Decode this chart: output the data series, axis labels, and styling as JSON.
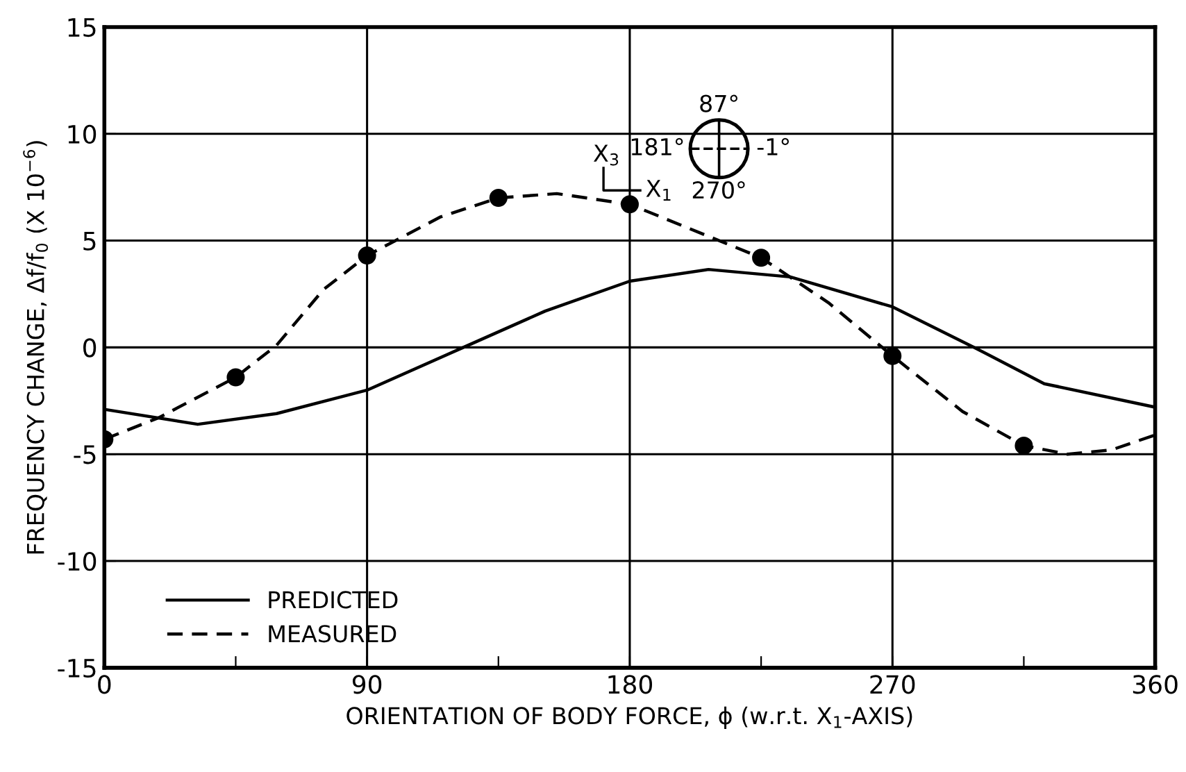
{
  "chart_data": {
    "type": "line",
    "xlabel": "ORIENTATION OF BODY FORCE, ϕ (w.r.t. X$_{1}$-AXIS)",
    "ylabel": "FREQUENCY CHANGE, Δf/f$_{0}$ (X 10$^{−6}$)",
    "xlim": [
      0,
      360
    ],
    "ylim": [
      -15,
      15
    ],
    "xticks": [
      0,
      {
        "value": 45,
        "label": null
      },
      90,
      {
        "value": 135,
        "label": null
      },
      180,
      {
        "value": 225,
        "label": null
      },
      270,
      {
        "value": 315,
        "label": null
      },
      360
    ],
    "yticks": [
      -15,
      -10,
      -5,
      0,
      5,
      10,
      15
    ],
    "grid": true,
    "legend": "bottom left",
    "series": [
      {
        "name": "PREDICTED",
        "color": "#000000",
        "line_style": "solid",
        "marker": "none",
        "x": [
          0,
          32,
          59,
          90,
          123,
          151,
          180,
          207,
          235,
          270,
          298,
          322,
          360
        ],
        "values": [
          -2.9,
          -3.6,
          -3.1,
          -2.0,
          0,
          1.7,
          3.1,
          3.65,
          3.3,
          1.9,
          0,
          -1.7,
          -2.8
        ]
      },
      {
        "name": "MEASURED",
        "color": "#000000",
        "line_style": "dashed",
        "marker": "none",
        "x": [
          0,
          18.5,
          45,
          59,
          75,
          90,
          115,
          135,
          155,
          180,
          225,
          248,
          270,
          294,
          315,
          330,
          345,
          360
        ],
        "values": [
          -4.3,
          -3.3,
          -1.4,
          0.1,
          2.7,
          4.3,
          6.1,
          7.0,
          7.2,
          6.7,
          4.2,
          2.1,
          -0.4,
          -3.0,
          -4.6,
          -5.0,
          -4.8,
          -4.1
        ]
      },
      {
        "type": "scatter",
        "color": "#000000",
        "marker": "circle",
        "x": [
          0,
          45,
          90,
          135,
          180,
          225,
          270,
          315
        ],
        "values": [
          -4.3,
          -1.4,
          4.3,
          7.0,
          6.7,
          4.2,
          -0.4,
          -4.6
        ]
      }
    ],
    "annotations": [
      "87°",
      "181°",
      "-1°",
      "270°",
      "X$_{3}$",
      "X$_{1}$"
    ]
  }
}
